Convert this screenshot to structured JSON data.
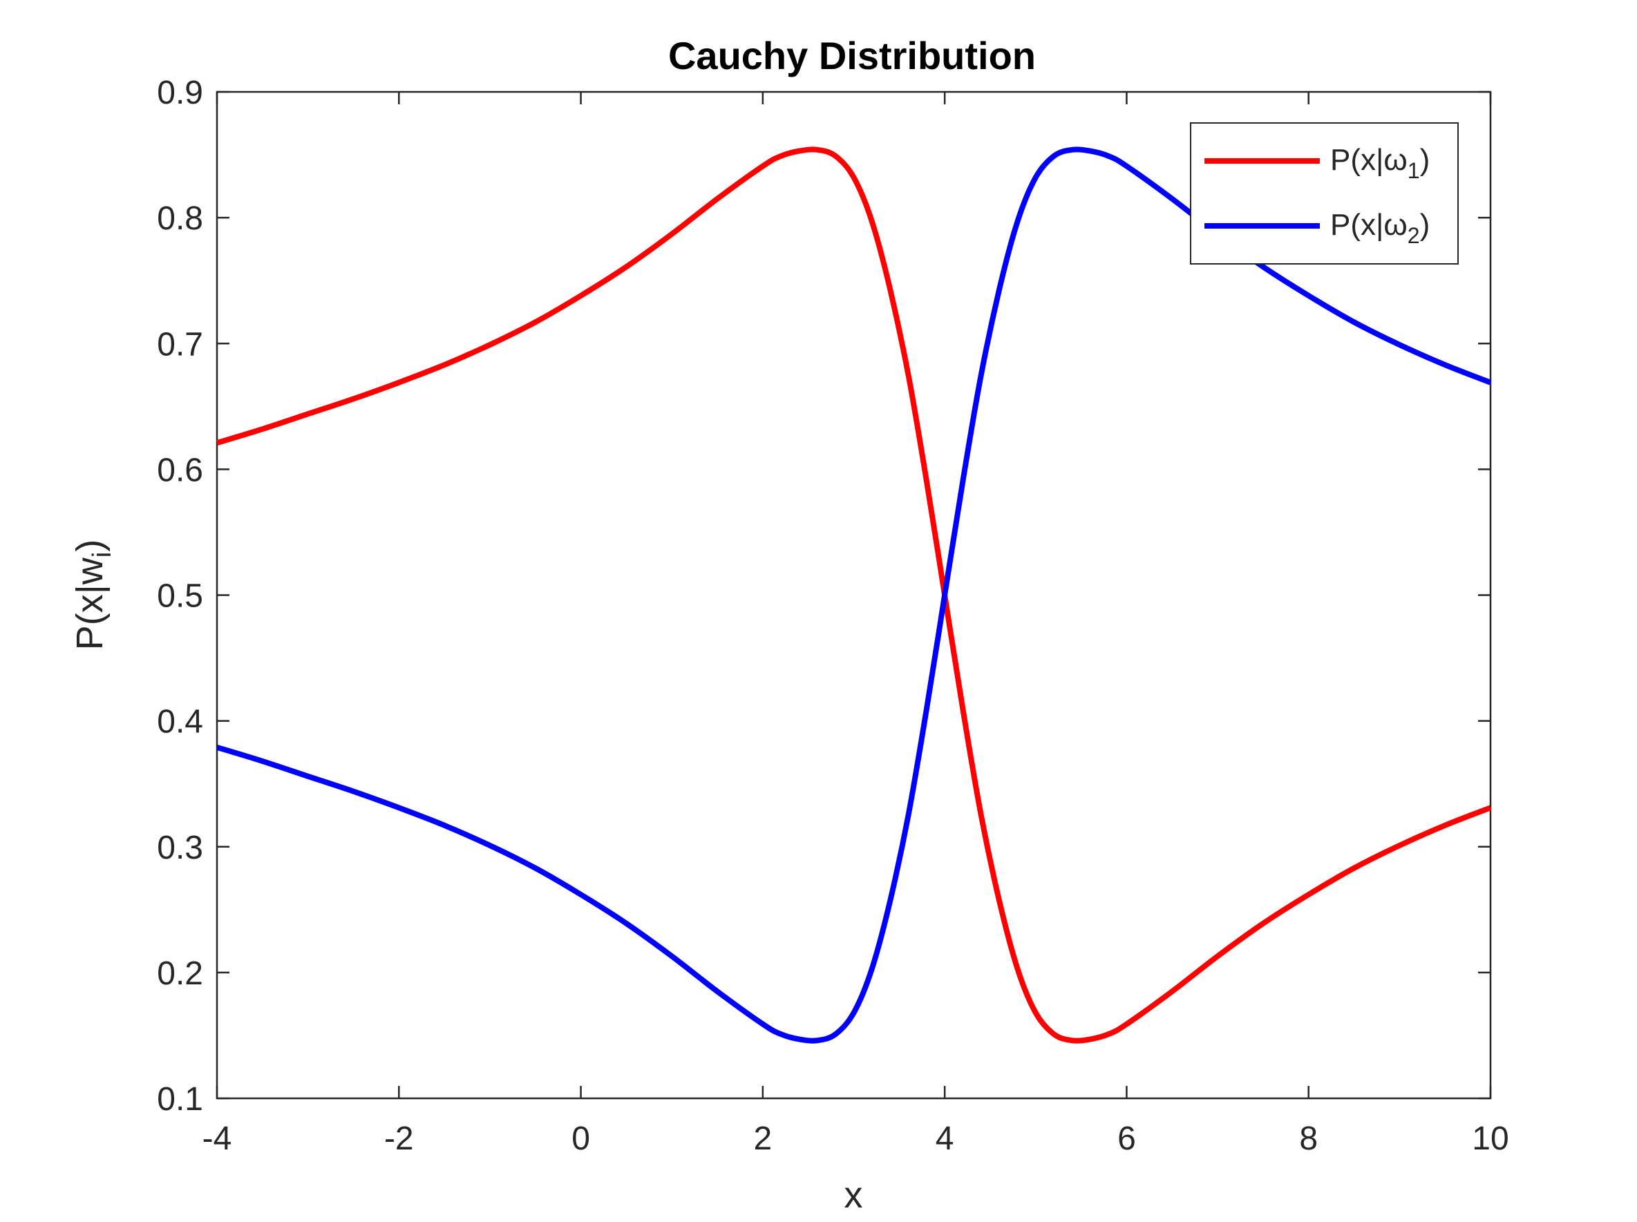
{
  "chart_data": {
    "type": "line",
    "title": "Cauchy Distribution",
    "xlabel": "x",
    "ylabel": "P(x|w",
    "ylabel_sub": "i",
    "ylabel_close": ")",
    "xlim": [
      -4,
      10
    ],
    "ylim": [
      0.1,
      0.9
    ],
    "x_ticks": [
      -4,
      -2,
      0,
      2,
      4,
      6,
      8,
      10
    ],
    "y_ticks": [
      0.1,
      0.2,
      0.3,
      0.4,
      0.5,
      0.6,
      0.7,
      0.8,
      0.9
    ],
    "x_tick_labels": [
      "-4",
      "-2",
      "0",
      "2",
      "4",
      "6",
      "8",
      "10"
    ],
    "y_tick_labels": [
      "0.1",
      "0.2",
      "0.3",
      "0.4",
      "0.5",
      "0.6",
      "0.7",
      "0.8",
      "0.9"
    ],
    "grid": false,
    "legend_position": "top-right",
    "x": [
      -4,
      -3.5,
      -3,
      -2.5,
      -2,
      -1.5,
      -1,
      -0.5,
      0,
      0.5,
      1,
      1.5,
      2,
      2.2,
      2.4,
      2.6,
      2.8,
      3,
      3.2,
      3.4,
      3.6,
      3.8,
      4,
      4.2,
      4.4,
      4.6,
      4.8,
      5,
      5.2,
      5.4,
      5.6,
      5.8,
      6,
      6.5,
      7,
      7.5,
      8,
      8.5,
      9,
      9.5,
      10
    ],
    "series": [
      {
        "name": "P(x|ω",
        "subscript": "1",
        "color": "#ff0000",
        "values": [
          0.621,
          0.632,
          0.644,
          0.656,
          0.669,
          0.683,
          0.699,
          0.717,
          0.738,
          0.761,
          0.787,
          0.815,
          0.841,
          0.849,
          0.853,
          0.854,
          0.849,
          0.832,
          0.797,
          0.743,
          0.675,
          0.591,
          0.5,
          0.409,
          0.325,
          0.257,
          0.203,
          0.168,
          0.151,
          0.146,
          0.147,
          0.151,
          0.159,
          0.185,
          0.213,
          0.239,
          0.262,
          0.283,
          0.301,
          0.317,
          0.331
        ]
      },
      {
        "name": "P(x|ω",
        "subscript": "2",
        "color": "#0000ff",
        "values": [
          0.379,
          0.368,
          0.356,
          0.344,
          0.331,
          0.317,
          0.301,
          0.283,
          0.262,
          0.239,
          0.213,
          0.185,
          0.159,
          0.151,
          0.147,
          0.146,
          0.151,
          0.168,
          0.203,
          0.257,
          0.325,
          0.409,
          0.5,
          0.591,
          0.675,
          0.743,
          0.797,
          0.832,
          0.849,
          0.854,
          0.853,
          0.849,
          0.841,
          0.815,
          0.787,
          0.761,
          0.738,
          0.717,
          0.699,
          0.683,
          0.669
        ]
      }
    ],
    "colors": {
      "axis": "#262626",
      "legend_border": "#262626",
      "background": "#ffffff"
    }
  }
}
